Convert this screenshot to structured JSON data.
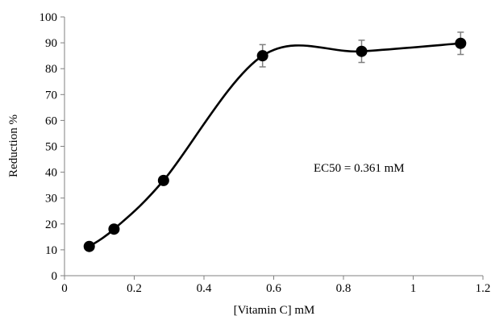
{
  "chart_data": {
    "type": "scatter",
    "xlabel": "[Vitamin C] mM",
    "ylabel": "Reduction %",
    "xlim": [
      0,
      1.2
    ],
    "ylim": [
      0,
      100
    ],
    "x_ticks": [
      0,
      0.2,
      0.4,
      0.6,
      0.8,
      1,
      1.2
    ],
    "x_tick_labels": [
      "0",
      "0.2",
      "0.4",
      "0.6",
      "0.8",
      "1",
      "1.2"
    ],
    "y_ticks": [
      0,
      10,
      20,
      30,
      40,
      50,
      60,
      70,
      80,
      90,
      100
    ],
    "y_tick_labels": [
      "0",
      "10",
      "20",
      "30",
      "40",
      "50",
      "60",
      "70",
      "80",
      "90",
      "100"
    ],
    "grid": false,
    "smoothed_line": true,
    "annotation": "EC50 = 0.361 mM",
    "points": [
      {
        "x": 0.071,
        "y": 11.3
      },
      {
        "x": 0.142,
        "y": 18.0
      },
      {
        "x": 0.284,
        "y": 36.8
      },
      {
        "x": 0.568,
        "y": 85.0,
        "err": 4.3
      },
      {
        "x": 0.852,
        "y": 86.7,
        "err": 4.3
      },
      {
        "x": 1.136,
        "y": 89.8,
        "err": 4.3
      }
    ],
    "colors": {
      "series": "#000000",
      "error_bars": "#7f7f7f",
      "axis": "#808080"
    }
  }
}
